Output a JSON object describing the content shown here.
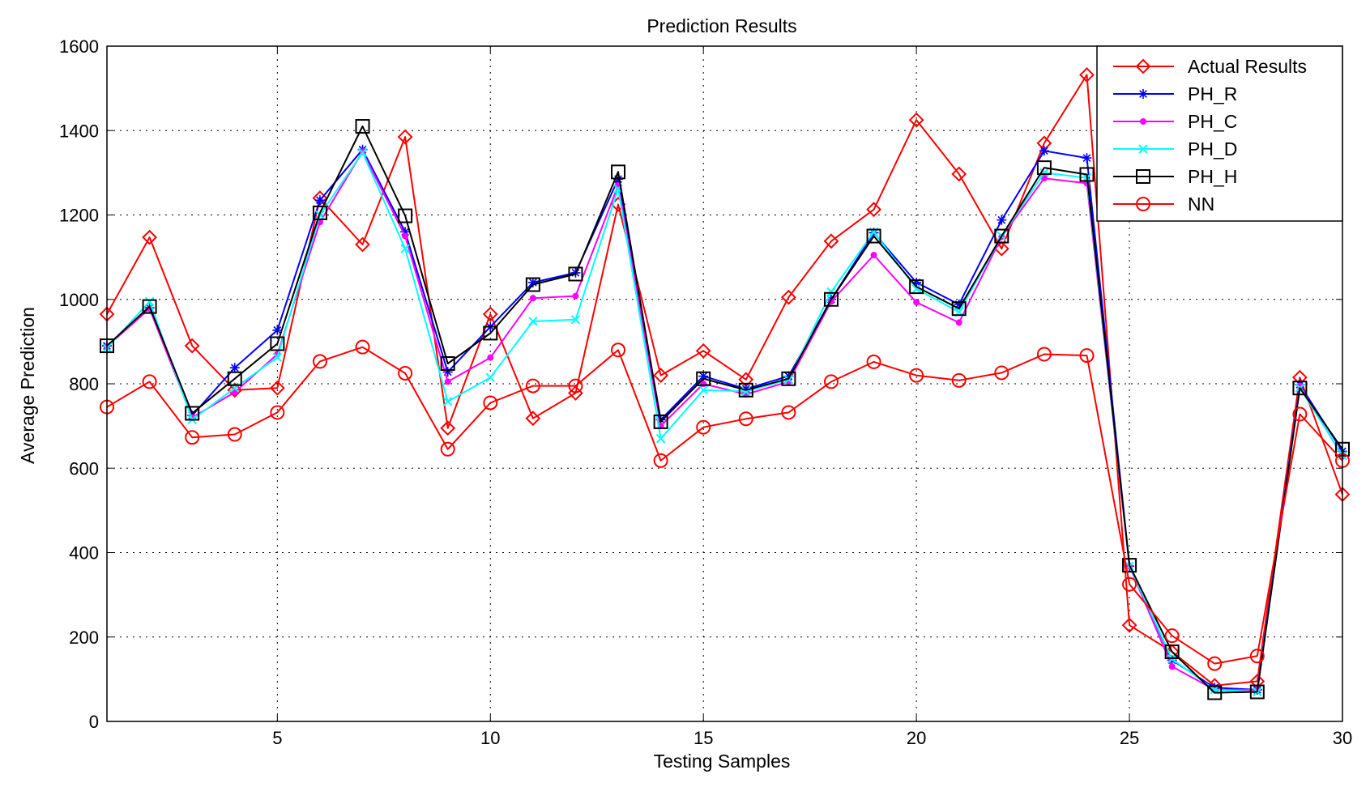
{
  "chart_data": {
    "type": "line",
    "title": "Prediction Results",
    "xlabel": "Testing Samples",
    "ylabel": "Average Prediction",
    "xlim": [
      1,
      30
    ],
    "ylim": [
      0,
      1600
    ],
    "xticks": [
      5,
      10,
      15,
      20,
      25,
      30
    ],
    "yticks": [
      0,
      200,
      400,
      600,
      800,
      1000,
      1200,
      1400,
      1600
    ],
    "grid": true,
    "legend_position": "top-right",
    "x": [
      1,
      2,
      3,
      4,
      5,
      6,
      7,
      8,
      9,
      10,
      11,
      12,
      13,
      14,
      15,
      16,
      17,
      18,
      19,
      20,
      21,
      22,
      23,
      24,
      25,
      26,
      27,
      28,
      29,
      30
    ],
    "series": [
      {
        "name": "Actual Results",
        "color": "#ff0000",
        "marker": "diamond",
        "values": [
          965,
          1147,
          890,
          785,
          790,
          1240,
          1130,
          1385,
          695,
          965,
          718,
          778,
          1225,
          820,
          878,
          810,
          1005,
          1138,
          1213,
          1425,
          1297,
          1120,
          1370,
          1532,
          228,
          165,
          85,
          95,
          815,
          538
        ]
      },
      {
        "name": "PH_R",
        "color": "#0000ff",
        "marker": "star",
        "values": [
          890,
          980,
          725,
          838,
          927,
          1235,
          1355,
          1160,
          828,
          935,
          1040,
          1063,
          1285,
          715,
          818,
          788,
          818,
          1000,
          1158,
          1040,
          988,
          1188,
          1352,
          1335,
          368,
          145,
          80,
          75,
          798,
          640
        ]
      },
      {
        "name": "PH_C",
        "color": "#ff00ff",
        "marker": "dot",
        "values": [
          888,
          978,
          720,
          780,
          870,
          1183,
          1350,
          1150,
          805,
          862,
          1003,
          1008,
          1270,
          700,
          800,
          775,
          805,
          995,
          1105,
          993,
          945,
          1148,
          1287,
          1275,
          368,
          130,
          75,
          75,
          795,
          628
        ]
      },
      {
        "name": "PH_D",
        "color": "#00ffff",
        "marker": "x",
        "values": [
          885,
          995,
          715,
          790,
          863,
          1200,
          1348,
          1120,
          758,
          815,
          948,
          952,
          1262,
          670,
          785,
          782,
          810,
          1018,
          1160,
          1025,
          970,
          1150,
          1300,
          1288,
          368,
          148,
          75,
          70,
          790,
          630
        ]
      },
      {
        "name": "PH_H",
        "color": "#000000",
        "marker": "square",
        "values": [
          890,
          983,
          730,
          812,
          895,
          1205,
          1410,
          1198,
          848,
          920,
          1035,
          1060,
          1302,
          710,
          812,
          785,
          812,
          1000,
          1150,
          1030,
          978,
          1150,
          1312,
          1296,
          370,
          165,
          68,
          70,
          790,
          645
        ]
      },
      {
        "name": "NN",
        "color": "#ff0000",
        "marker": "circle",
        "values": [
          745,
          805,
          673,
          680,
          732,
          853,
          887,
          825,
          645,
          755,
          795,
          795,
          880,
          618,
          697,
          717,
          732,
          805,
          852,
          820,
          808,
          826,
          870,
          867,
          325,
          203,
          137,
          155,
          728,
          618
        ]
      }
    ]
  }
}
